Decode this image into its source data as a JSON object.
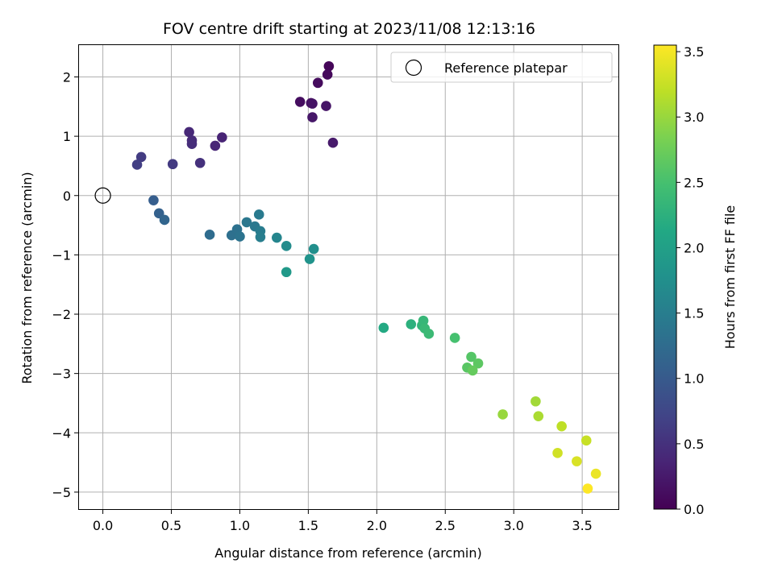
{
  "chart_data": {
    "type": "scatter",
    "title": "FOV centre drift starting at 2023/11/08 12:13:16",
    "xlabel": "Angular distance from reference (arcmin)",
    "ylabel": "Rotation from reference (arcmin)",
    "xlim": [
      -0.18,
      3.77
    ],
    "ylim": [
      -5.3,
      2.55
    ],
    "xticks": [
      "0.0",
      "0.5",
      "1.0",
      "1.5",
      "2.0",
      "2.5",
      "3.0",
      "3.5"
    ],
    "xtick_values": [
      0.0,
      0.5,
      1.0,
      1.5,
      2.0,
      2.5,
      3.0,
      3.5
    ],
    "yticks": [
      "−5",
      "−4",
      "−3",
      "−2",
      "−1",
      "0",
      "1",
      "2"
    ],
    "ytick_values": [
      -5,
      -4,
      -3,
      -2,
      -1,
      0,
      1,
      2
    ],
    "grid": true,
    "legend": {
      "placement": "top-right",
      "entries": [
        "Reference platepar"
      ]
    },
    "reference_point": {
      "x": 0.0,
      "y": 0.0
    },
    "colorbar": {
      "label": "Hours from first FF file",
      "colormap": "viridis",
      "range": [
        0.0,
        3.55
      ],
      "ticks": [
        "0.0",
        "0.5",
        "1.0",
        "1.5",
        "2.0",
        "2.5",
        "3.0",
        "3.5"
      ],
      "tick_values": [
        0.0,
        0.5,
        1.0,
        1.5,
        2.0,
        2.5,
        3.0,
        3.5
      ]
    },
    "points": [
      {
        "x": 1.65,
        "y": 2.18,
        "t": 0.05
      },
      {
        "x": 1.64,
        "y": 2.04,
        "t": 0.08
      },
      {
        "x": 1.57,
        "y": 1.9,
        "t": 0.1
      },
      {
        "x": 1.44,
        "y": 1.58,
        "t": 0.12
      },
      {
        "x": 1.52,
        "y": 1.56,
        "t": 0.15
      },
      {
        "x": 1.53,
        "y": 1.55,
        "t": 0.18
      },
      {
        "x": 1.63,
        "y": 1.51,
        "t": 0.2
      },
      {
        "x": 1.53,
        "y": 1.32,
        "t": 0.22
      },
      {
        "x": 1.68,
        "y": 0.89,
        "t": 0.25
      },
      {
        "x": 0.87,
        "y": 0.98,
        "t": 0.35
      },
      {
        "x": 0.63,
        "y": 1.07,
        "t": 0.4
      },
      {
        "x": 0.65,
        "y": 0.93,
        "t": 0.42
      },
      {
        "x": 0.65,
        "y": 0.87,
        "t": 0.45
      },
      {
        "x": 0.82,
        "y": 0.84,
        "t": 0.38
      },
      {
        "x": 0.71,
        "y": 0.55,
        "t": 0.5
      },
      {
        "x": 0.51,
        "y": 0.53,
        "t": 0.6
      },
      {
        "x": 0.28,
        "y": 0.65,
        "t": 0.62
      },
      {
        "x": 0.25,
        "y": 0.52,
        "t": 0.65
      },
      {
        "x": 0.37,
        "y": -0.08,
        "t": 1.05
      },
      {
        "x": 0.41,
        "y": -0.3,
        "t": 1.1
      },
      {
        "x": 0.45,
        "y": -0.41,
        "t": 1.15
      },
      {
        "x": 0.78,
        "y": -0.66,
        "t": 1.25
      },
      {
        "x": 0.94,
        "y": -0.67,
        "t": 1.3
      },
      {
        "x": 0.98,
        "y": -0.57,
        "t": 1.32
      },
      {
        "x": 1.0,
        "y": -0.69,
        "t": 1.35
      },
      {
        "x": 1.05,
        "y": -0.45,
        "t": 1.4
      },
      {
        "x": 1.11,
        "y": -0.52,
        "t": 1.42
      },
      {
        "x": 1.14,
        "y": -0.32,
        "t": 1.45
      },
      {
        "x": 1.15,
        "y": -0.6,
        "t": 1.48
      },
      {
        "x": 1.15,
        "y": -0.7,
        "t": 1.5
      },
      {
        "x": 1.27,
        "y": -0.71,
        "t": 1.6
      },
      {
        "x": 1.34,
        "y": -0.85,
        "t": 1.7
      },
      {
        "x": 1.54,
        "y": -0.9,
        "t": 1.75
      },
      {
        "x": 1.51,
        "y": -1.07,
        "t": 1.8
      },
      {
        "x": 1.34,
        "y": -1.29,
        "t": 1.9
      },
      {
        "x": 2.05,
        "y": -2.23,
        "t": 2.15
      },
      {
        "x": 2.25,
        "y": -2.17,
        "t": 2.25
      },
      {
        "x": 2.33,
        "y": -2.19,
        "t": 2.3
      },
      {
        "x": 2.34,
        "y": -2.11,
        "t": 2.35
      },
      {
        "x": 2.35,
        "y": -2.24,
        "t": 2.38
      },
      {
        "x": 2.38,
        "y": -2.33,
        "t": 2.4
      },
      {
        "x": 2.57,
        "y": -2.4,
        "t": 2.5
      },
      {
        "x": 2.69,
        "y": -2.72,
        "t": 2.6
      },
      {
        "x": 2.74,
        "y": -2.83,
        "t": 2.65
      },
      {
        "x": 2.66,
        "y": -2.9,
        "t": 2.62
      },
      {
        "x": 2.7,
        "y": -2.95,
        "t": 2.7
      },
      {
        "x": 2.92,
        "y": -3.69,
        "t": 3.0
      },
      {
        "x": 3.16,
        "y": -3.47,
        "t": 3.05
      },
      {
        "x": 3.18,
        "y": -3.72,
        "t": 3.1
      },
      {
        "x": 3.35,
        "y": -3.89,
        "t": 3.2
      },
      {
        "x": 3.53,
        "y": -4.13,
        "t": 3.25
      },
      {
        "x": 3.32,
        "y": -4.34,
        "t": 3.3
      },
      {
        "x": 3.46,
        "y": -4.48,
        "t": 3.35
      },
      {
        "x": 3.6,
        "y": -4.69,
        "t": 3.45
      },
      {
        "x": 3.54,
        "y": -4.94,
        "t": 3.55
      }
    ]
  }
}
